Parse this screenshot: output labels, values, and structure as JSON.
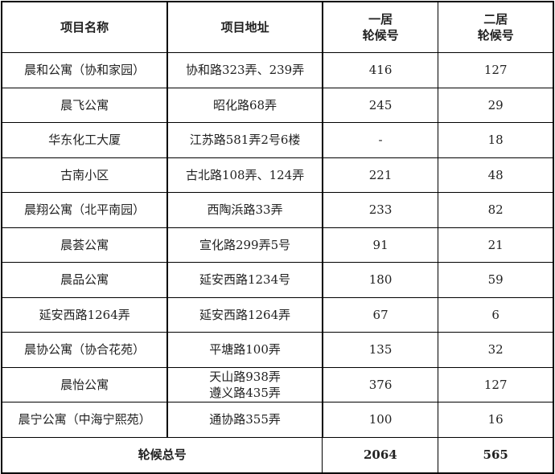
{
  "headers": [
    "项目名称",
    "项目地址",
    "一居\n轮候号",
    "二居\n轮候号"
  ],
  "header_lines": {
    "col3": [
      "一居",
      "轮候号"
    ],
    "col4": [
      "二居",
      "轮候号"
    ]
  },
  "rows": [
    {
      "name": "晨和公寓（协和家园）",
      "address": [
        "协和路323弄、239弄"
      ],
      "one": "416",
      "two": "127"
    },
    {
      "name": "晨飞公寓",
      "address": [
        "昭化路68弄"
      ],
      "one": "245",
      "two": "29"
    },
    {
      "name": "华东化工大厦",
      "address": [
        "江苏路581弄2号6楼"
      ],
      "one": "-",
      "two": "18"
    },
    {
      "name": "古南小区",
      "address": [
        "古北路108弄、124弄"
      ],
      "one": "221",
      "two": "48"
    },
    {
      "name": "晨翔公寓（北平南园）",
      "address": [
        "西陶浜路33弄"
      ],
      "one": "233",
      "two": "82"
    },
    {
      "name": "晨荟公寓",
      "address": [
        "宣化路299弄5号"
      ],
      "one": "91",
      "two": "21"
    },
    {
      "name": "晨品公寓",
      "address": [
        "延安西路1234号"
      ],
      "one": "180",
      "two": "59"
    },
    {
      "name": "延安西路1264弄",
      "address": [
        "延安西路1264弄"
      ],
      "one": "67",
      "two": "6"
    },
    {
      "name": "晨协公寓（协合花苑）",
      "address": [
        "平塘路100弄"
      ],
      "one": "135",
      "two": "32"
    },
    {
      "name": "晨怡公寓",
      "address": [
        "天山路938弄",
        "遵义路435弄"
      ],
      "one": "376",
      "two": "127"
    },
    {
      "name": "晨宁公寓（中海宁熙苑）",
      "address": [
        "通协路355弄"
      ],
      "one": "100",
      "two": "16"
    }
  ],
  "total": {
    "label": "轮候总号",
    "one": "2064",
    "two": "565"
  }
}
